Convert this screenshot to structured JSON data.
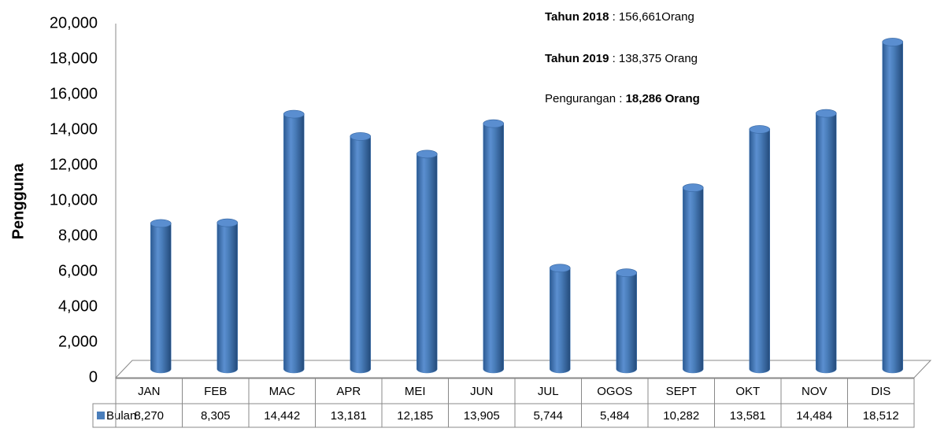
{
  "chart_data": {
    "type": "bar",
    "y_label": "Pengguna",
    "annotations": [
      [
        "Tahun 2018",
        " : 156,661Orang"
      ],
      [
        "Tahun 2019",
        " : 138,375 Orang"
      ],
      [
        "Pengurangan : ",
        "18,286 Orang"
      ]
    ],
    "categories": [
      "JAN",
      "FEB",
      "MAC",
      "APR",
      "MEI",
      "JUN",
      "JUL",
      "OGOS",
      "SEPT",
      "OKT",
      "NOV",
      "DIS"
    ],
    "series": [
      {
        "name": "Bulan",
        "color": "#4a7ebb",
        "values": [
          8270,
          8305,
          14442,
          13181,
          12185,
          13905,
          5744,
          5484,
          10282,
          13581,
          14484,
          18512
        ],
        "value_labels": [
          "8,270",
          "8,305",
          "14,442",
          "13,181",
          "12,185",
          "13,905",
          "5,744",
          "5,484",
          "10,282",
          "13,581",
          "14,484",
          "18,512"
        ]
      }
    ],
    "ylim": [
      0,
      20000
    ],
    "yticks": [
      0,
      {
        "value": 2000,
        "label": "2,000"
      },
      {
        "value": 4000,
        "label": "4,000"
      },
      {
        "value": 6000,
        "label": "6,000"
      },
      {
        "value": 8000,
        "label": "8,000"
      },
      {
        "value": 10000,
        "label": "10,000"
      },
      {
        "value": 12000,
        "label": "12,000"
      },
      {
        "value": 14000,
        "label": "14,000"
      },
      {
        "value": 16000,
        "label": "16,000"
      },
      {
        "value": 18000,
        "label": "18,000"
      },
      {
        "value": 20000,
        "label": "20,000"
      }
    ],
    "grid": false
  }
}
